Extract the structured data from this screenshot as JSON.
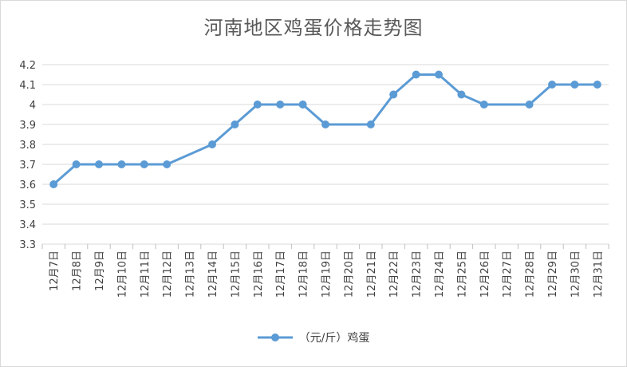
{
  "chart_data": {
    "type": "line",
    "title": "河南地区鸡蛋价格走势图",
    "categories": [
      "12月7日",
      "12月8日",
      "12月9日",
      "12月10日",
      "12月11日",
      "12月12日",
      "12月13日",
      "12月14日",
      "12月15日",
      "12月16日",
      "12月17日",
      "12月18日",
      "12月19日",
      "12月20日",
      "12月21日",
      "12月22日",
      "12月23日",
      "12月24日",
      "12月25日",
      "12月26日",
      "12月27日",
      "12月28日",
      "12月29日",
      "12月30日",
      "12月31日"
    ],
    "series": [
      {
        "name": "（元/斤）鸡蛋",
        "values": [
          3.6,
          3.7,
          3.7,
          3.7,
          3.7,
          3.7,
          null,
          3.8,
          3.9,
          4.0,
          4.0,
          4.0,
          3.9,
          null,
          3.9,
          4.05,
          4.15,
          4.15,
          4.05,
          4.0,
          null,
          4.0,
          4.1,
          4.1,
          4.1
        ]
      }
    ],
    "yticks": [
      "3.3",
      "3.4",
      "3.5",
      "3.6",
      "3.7",
      "3.8",
      "3.9",
      "4",
      "4.1",
      "4.2"
    ],
    "ylim": [
      3.3,
      4.2
    ],
    "grid": true,
    "legend_position": "bottom",
    "colors": {
      "series": "#5b9bd5",
      "grid": "#d9d9d9",
      "axis": "#bfbfbf"
    }
  }
}
